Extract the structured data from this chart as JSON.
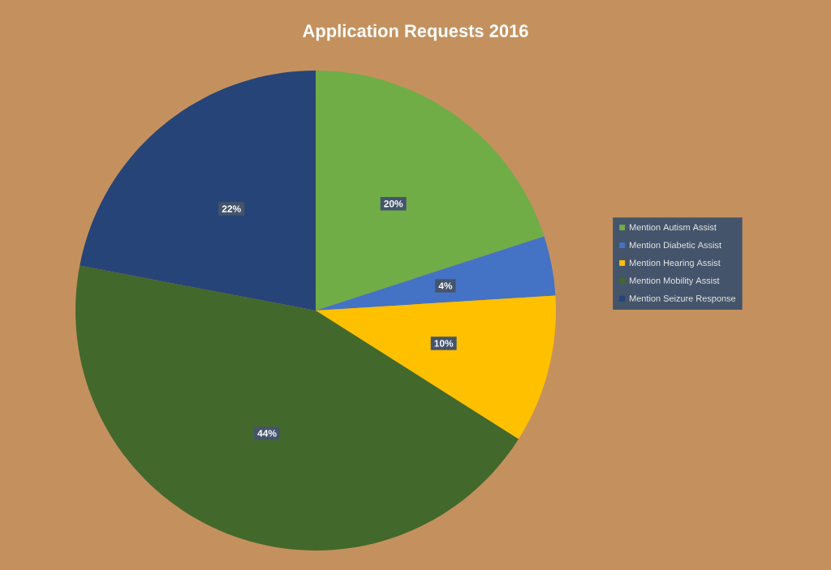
{
  "chart_data": {
    "type": "pie",
    "title": "Application Requests 2016",
    "categories": [
      "Mention Autism Assist",
      "Mention Diabetic Assist",
      "Mention Hearing Assist",
      "Mention Mobility Assist",
      "Mention Seizure Response"
    ],
    "values": [
      20,
      4,
      10,
      44,
      22
    ],
    "value_labels": [
      "20%",
      "4%",
      "10%",
      "44%",
      "22%"
    ],
    "colors": [
      "#70ad47",
      "#4472c4",
      "#ffc000",
      "#43682b",
      "#264478"
    ],
    "legend": "right"
  }
}
